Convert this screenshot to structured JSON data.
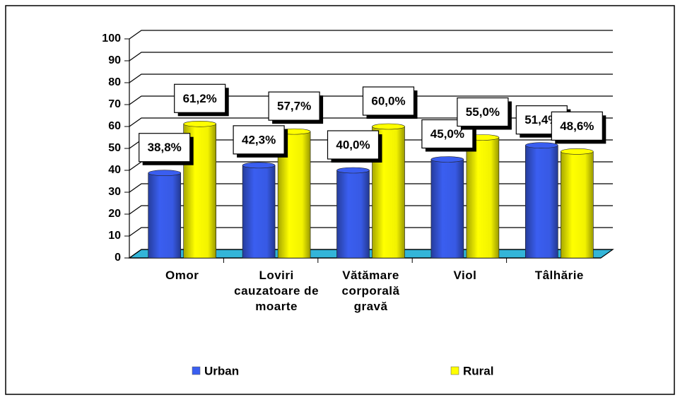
{
  "chart_data": {
    "type": "bar",
    "categories": [
      "Omor",
      "Loviri cauzatoare de moarte",
      "Vătămare corporală gravă",
      "Viol",
      "Tâlhărie"
    ],
    "series": [
      {
        "name": "Urban",
        "color": "#3a5ef0",
        "values": [
          38.8,
          42.3,
          40.0,
          45.0,
          51.4
        ],
        "value_labels": [
          "38,8%",
          "42,3%",
          "40,0%",
          "45,0%",
          "51,4%"
        ]
      },
      {
        "name": "Rural",
        "color": "#ffff00",
        "values": [
          61.2,
          57.7,
          60.0,
          55.0,
          48.6
        ],
        "value_labels": [
          "61,2%",
          "57,7%",
          "60,0%",
          "55,0%",
          "48,6%"
        ]
      }
    ],
    "ylim": [
      0,
      100
    ],
    "yticks": [
      0,
      10,
      20,
      30,
      40,
      50,
      60,
      70,
      80,
      90,
      100
    ],
    "grid": true,
    "legend": "bottom"
  }
}
